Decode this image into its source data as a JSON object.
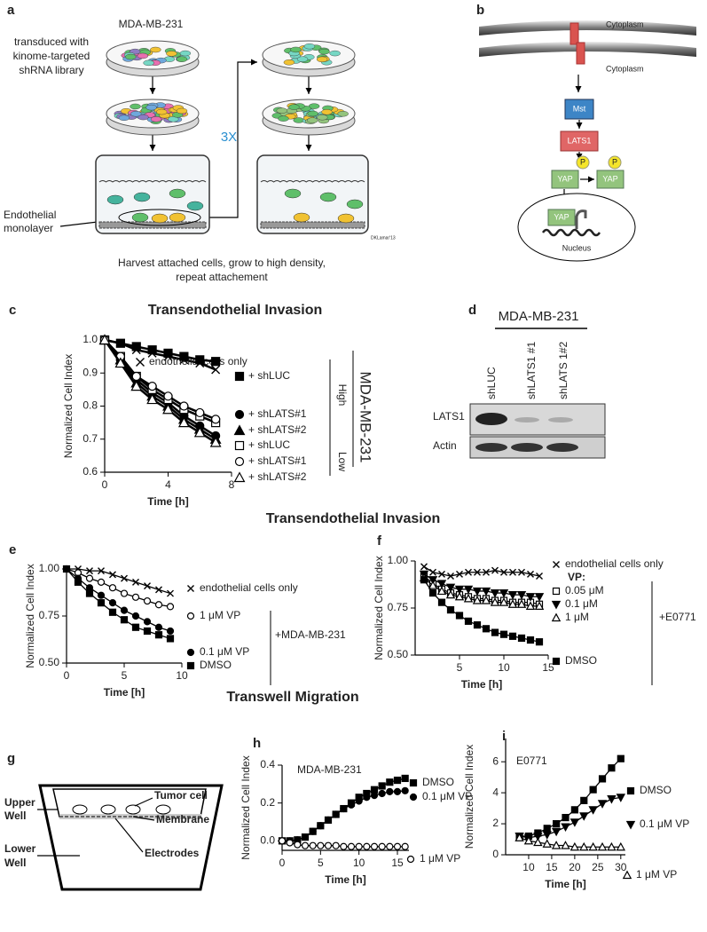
{
  "panel_labels": [
    "a",
    "b",
    "c",
    "d",
    "e",
    "f",
    "g",
    "h",
    "i"
  ],
  "figure_a": {
    "title": "MDA-MB-231",
    "transduction": [
      "transduced with",
      "kinome-targeted",
      "shRNA library"
    ],
    "repeat": "3X",
    "endothelial": [
      "Endothelial",
      "monolayer"
    ],
    "caption": [
      "Harvest attached cells, grow to high density,",
      "repeat attachement"
    ],
    "credit": "DKLamar'13"
  },
  "figure_b": {
    "cytoplasm_top": "Cytoplasm",
    "cytoplasm_bottom": "Cytoplasm",
    "mst": "Mst",
    "lats1": "LATS1",
    "phospho": [
      "P",
      "P"
    ],
    "yap": [
      "YAP",
      "YAP",
      "YAP"
    ],
    "nucleus": "Nucleus"
  },
  "blot_d": {
    "title": "MDA-MB-231",
    "lanes": [
      "shLUC",
      "shLATS1 #1",
      "shLATS 1#2"
    ],
    "rows": [
      "LATS1",
      "Actin"
    ]
  },
  "headers": [
    "Transendothelial Invasion",
    "Transwell Migration"
  ],
  "figure_g": {
    "upper_well": [
      "Upper",
      "Well"
    ],
    "tumor_cell": "Tumor cell",
    "membrane": "Membrane",
    "lower_well": [
      "Lower",
      "Well"
    ],
    "electrodes": "Electrodes"
  },
  "chart_data": [
    {
      "type": "line",
      "title": "Transendothelial Invasion",
      "xlabel": "Time [h]",
      "ylabel": "Normalized Cell Index",
      "x": [
        0,
        1,
        2,
        3,
        4,
        5,
        6,
        7
      ],
      "xlim": [
        0,
        8
      ],
      "xticks": [
        0,
        4,
        8
      ],
      "ylim": [
        0.6,
        1.0
      ],
      "yticks": [
        0.6,
        0.7,
        0.8,
        0.9,
        {
          "value": 1,
          "label": "1.0"
        }
      ],
      "annotations": [
        "High",
        "Low",
        "MDA-MB-231"
      ],
      "series": [
        {
          "name": "endothelial cells only",
          "color": "#000000",
          "marker": "x",
          "filled": true,
          "values": [
            1.0,
            0.99,
            0.97,
            0.96,
            0.95,
            0.94,
            0.93,
            0.91
          ]
        },
        {
          "name": "+ shLUC",
          "color": "#000000",
          "marker": "square",
          "filled": true,
          "values": [
            1.0,
            0.99,
            0.98,
            0.97,
            0.96,
            0.95,
            0.94,
            0.935
          ]
        },
        {
          "name": "+ shLATS#1",
          "color": "#000000",
          "marker": "circle",
          "filled": true,
          "values": [
            1.0,
            0.94,
            0.88,
            0.84,
            0.81,
            0.77,
            0.74,
            0.71
          ]
        },
        {
          "name": "+ shLATS#2",
          "color": "#000000",
          "marker": "triangle",
          "filled": true,
          "values": [
            1.0,
            0.94,
            0.87,
            0.83,
            0.8,
            0.76,
            0.73,
            0.7
          ]
        },
        {
          "name": "+ shLUC",
          "color": "#000000",
          "marker": "square",
          "filled": false,
          "values": [
            1.0,
            0.95,
            0.89,
            0.85,
            0.82,
            0.79,
            0.77,
            0.75
          ]
        },
        {
          "name": "+ shLATS#1",
          "color": "#000000",
          "marker": "circle",
          "filled": false,
          "values": [
            1.0,
            0.95,
            0.89,
            0.86,
            0.83,
            0.8,
            0.78,
            0.76
          ]
        },
        {
          "name": "+ shLATS#2",
          "color": "#000000",
          "marker": "triangle",
          "filled": false,
          "values": [
            1.0,
            0.93,
            0.86,
            0.82,
            0.79,
            0.75,
            0.72,
            0.69
          ]
        }
      ]
    },
    {
      "type": "line",
      "xlabel": "Time [h]",
      "ylabel": "Normalized Cell Index",
      "x": [
        0,
        1,
        2,
        3,
        4,
        5,
        6,
        7,
        8,
        9
      ],
      "xlim": [
        0,
        10
      ],
      "xticks": [
        0,
        5,
        10
      ],
      "ylim": [
        0.5,
        1.0
      ],
      "yticks": [
        {
          "value": 0.5,
          "label": "0.50"
        },
        0.75,
        {
          "value": 1,
          "label": "1.00"
        }
      ],
      "annotations": [
        "+MDA-MB-231"
      ],
      "series": [
        {
          "name": "endothelial cells only",
          "color": "#000000",
          "marker": "x",
          "filled": true,
          "values": [
            1.0,
            1.0,
            0.99,
            0.99,
            0.97,
            0.95,
            0.93,
            0.91,
            0.89,
            0.87
          ]
        },
        {
          "name": "1 μM VP",
          "color": "#000000",
          "marker": "circle",
          "filled": false,
          "values": [
            1.0,
            0.98,
            0.95,
            0.93,
            0.9,
            0.87,
            0.85,
            0.83,
            0.81,
            0.8
          ]
        },
        {
          "name": "0.1 μM VP",
          "color": "#000000",
          "marker": "circle",
          "filled": true,
          "values": [
            1.0,
            0.95,
            0.9,
            0.86,
            0.82,
            0.78,
            0.75,
            0.72,
            0.69,
            0.67
          ]
        },
        {
          "name": "DMSO",
          "color": "#000000",
          "marker": "square",
          "filled": true,
          "values": [
            1.0,
            0.93,
            0.87,
            0.82,
            0.77,
            0.73,
            0.69,
            0.67,
            0.65,
            0.63
          ]
        }
      ]
    },
    {
      "type": "line",
      "xlabel": "Time [h]",
      "ylabel": "Normalized Cell Index",
      "x": [
        1,
        2,
        3,
        4,
        5,
        6,
        7,
        8,
        9,
        10,
        11,
        12,
        13,
        14
      ],
      "xlim": [
        0,
        15
      ],
      "xticks": [
        5,
        10,
        15
      ],
      "ylim": [
        0.5,
        1.0
      ],
      "yticks": [
        {
          "value": 0.5,
          "label": "0.50"
        },
        0.75,
        {
          "value": 1,
          "label": "1.00"
        }
      ],
      "annotations": [
        "VP:",
        "+E0771"
      ],
      "series": [
        {
          "name": "endothelial cells only",
          "color": "#000000",
          "marker": "x",
          "filled": true,
          "values": [
            0.97,
            0.94,
            0.93,
            0.92,
            0.93,
            0.94,
            0.94,
            0.94,
            0.95,
            0.94,
            0.94,
            0.94,
            0.93,
            0.92
          ]
        },
        {
          "name": "0.05 μM",
          "color": "#000000",
          "marker": "square",
          "filled": false,
          "values": [
            0.92,
            0.88,
            0.85,
            0.83,
            0.82,
            0.81,
            0.8,
            0.8,
            0.79,
            0.79,
            0.78,
            0.78,
            0.78,
            0.77
          ]
        },
        {
          "name": "0.1 μM",
          "color": "#000000",
          "marker": "triangle-down",
          "filled": true,
          "values": [
            0.93,
            0.9,
            0.88,
            0.86,
            0.85,
            0.85,
            0.84,
            0.84,
            0.83,
            0.83,
            0.82,
            0.82,
            0.81,
            0.81
          ]
        },
        {
          "name": "1 μM",
          "color": "#000000",
          "marker": "triangle",
          "filled": false,
          "values": [
            0.91,
            0.87,
            0.84,
            0.82,
            0.81,
            0.8,
            0.79,
            0.79,
            0.78,
            0.78,
            0.77,
            0.77,
            0.76,
            0.76
          ]
        },
        {
          "name": "DMSO",
          "color": "#000000",
          "marker": "square",
          "filled": true,
          "values": [
            0.9,
            0.83,
            0.78,
            0.74,
            0.71,
            0.68,
            0.66,
            0.64,
            0.62,
            0.61,
            0.6,
            0.59,
            0.58,
            0.57
          ]
        }
      ]
    },
    {
      "type": "line",
      "xlabel": "Time [h]",
      "ylabel": "Normalized Cell Index",
      "x": [
        0,
        1,
        2,
        3,
        4,
        5,
        6,
        7,
        8,
        9,
        10,
        11,
        12,
        13,
        14,
        15,
        16
      ],
      "xlim": [
        0,
        16.5
      ],
      "xticks": [
        0,
        5,
        10,
        15
      ],
      "ylim": [
        -0.05,
        0.4
      ],
      "yticks": [
        {
          "value": 0,
          "label": "0.0"
        },
        0.2,
        0.4
      ],
      "annotations": [
        "MDA-MB-231"
      ],
      "series": [
        {
          "name": "DMSO",
          "color": "#000000",
          "marker": "square",
          "filled": true,
          "values": [
            0,
            0,
            0.005,
            0.02,
            0.05,
            0.08,
            0.11,
            0.14,
            0.17,
            0.2,
            0.23,
            0.25,
            0.27,
            0.29,
            0.31,
            0.32,
            0.33
          ]
        },
        {
          "name": "0.1 μM VP",
          "color": "#000000",
          "marker": "circle",
          "filled": true,
          "values": [
            0,
            0,
            0.005,
            0.02,
            0.05,
            0.08,
            0.11,
            0.14,
            0.17,
            0.19,
            0.21,
            0.23,
            0.24,
            0.25,
            0.26,
            0.26,
            0.265
          ]
        },
        {
          "name": "1 μM VP",
          "color": "#000000",
          "marker": "circle",
          "filled": false,
          "values": [
            0,
            -0.01,
            -0.02,
            -0.025,
            -0.025,
            -0.025,
            -0.025,
            -0.025,
            -0.03,
            -0.03,
            -0.03,
            -0.03,
            -0.03,
            -0.03,
            -0.03,
            -0.03,
            -0.03
          ]
        }
      ]
    },
    {
      "type": "line",
      "xlabel": "Time [h]",
      "ylabel": "Normalized Cell Index",
      "x": [
        8,
        10,
        12,
        14,
        16,
        18,
        20,
        22,
        24,
        26,
        28,
        30
      ],
      "xlim": [
        5,
        31
      ],
      "xticks": [
        10,
        15,
        20,
        25,
        30
      ],
      "ylim": [
        0,
        7.5
      ],
      "yticks": [
        0,
        2,
        4,
        6
      ],
      "annotations": [
        "E0771"
      ],
      "series": [
        {
          "name": "DMSO",
          "color": "#000000",
          "marker": "square",
          "filled": true,
          "values": [
            1.2,
            1.2,
            1.4,
            1.7,
            2.0,
            2.4,
            2.9,
            3.5,
            4.2,
            4.9,
            5.6,
            6.2
          ]
        },
        {
          "name": "0.1 μM VP",
          "color": "#000000",
          "marker": "triangle-down",
          "filled": true,
          "values": [
            1.2,
            1.1,
            1.2,
            1.3,
            1.5,
            1.8,
            2.1,
            2.5,
            2.9,
            3.3,
            3.6,
            3.7
          ]
        },
        {
          "name": "1 μM VP",
          "color": "#000000",
          "marker": "triangle",
          "filled": false,
          "values": [
            1.1,
            0.9,
            0.8,
            0.7,
            0.6,
            0.6,
            0.5,
            0.5,
            0.5,
            0.5,
            0.5,
            0.5
          ]
        }
      ]
    }
  ]
}
